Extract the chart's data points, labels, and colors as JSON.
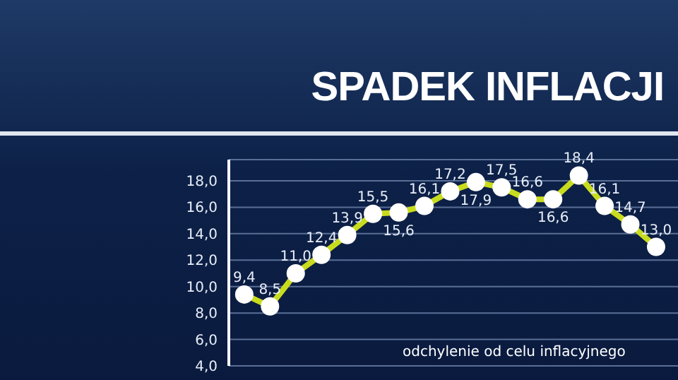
{
  "chart_data": {
    "type": "line",
    "title": "SPADEK INFLACJI",
    "annotations": [
      "odchylenie od celu inflacyjnego"
    ],
    "categories": [
      null,
      null,
      null,
      null,
      null,
      null,
      null,
      null,
      null,
      null,
      null,
      null,
      null,
      null,
      null,
      null,
      null
    ],
    "series": [
      {
        "color": "#c8dc1e",
        "values": [
          9.4,
          8.5,
          11.0,
          12.4,
          13.9,
          15.5,
          15.6,
          16.1,
          17.2,
          17.9,
          17.5,
          16.6,
          16.6,
          18.4,
          16.1,
          14.7,
          13.0
        ],
        "value_labels": [
          "9,4",
          "8,5",
          "11,0",
          "12,4",
          "13,9",
          "15,5",
          "15,6",
          "16,1",
          "17,2",
          "17,9",
          "17,5",
          "16,6",
          "16,6",
          "18,4",
          "16,1",
          "14,7",
          "13,0"
        ]
      }
    ],
    "ylim": [
      4,
      19.6
    ],
    "yticks": [
      {
        "value": 4,
        "label": "4,0"
      },
      {
        "value": 6,
        "label": "6,0"
      },
      {
        "value": 8,
        "label": "8,0"
      },
      {
        "value": 10,
        "label": "10,0"
      },
      {
        "value": 12,
        "label": "12,0"
      },
      {
        "value": 14,
        "label": "14,0"
      },
      {
        "value": 16,
        "label": "16,0"
      },
      {
        "value": 18,
        "label": "18,0"
      }
    ],
    "grid": "y",
    "marker": "circle",
    "tick_labels": "y"
  }
}
